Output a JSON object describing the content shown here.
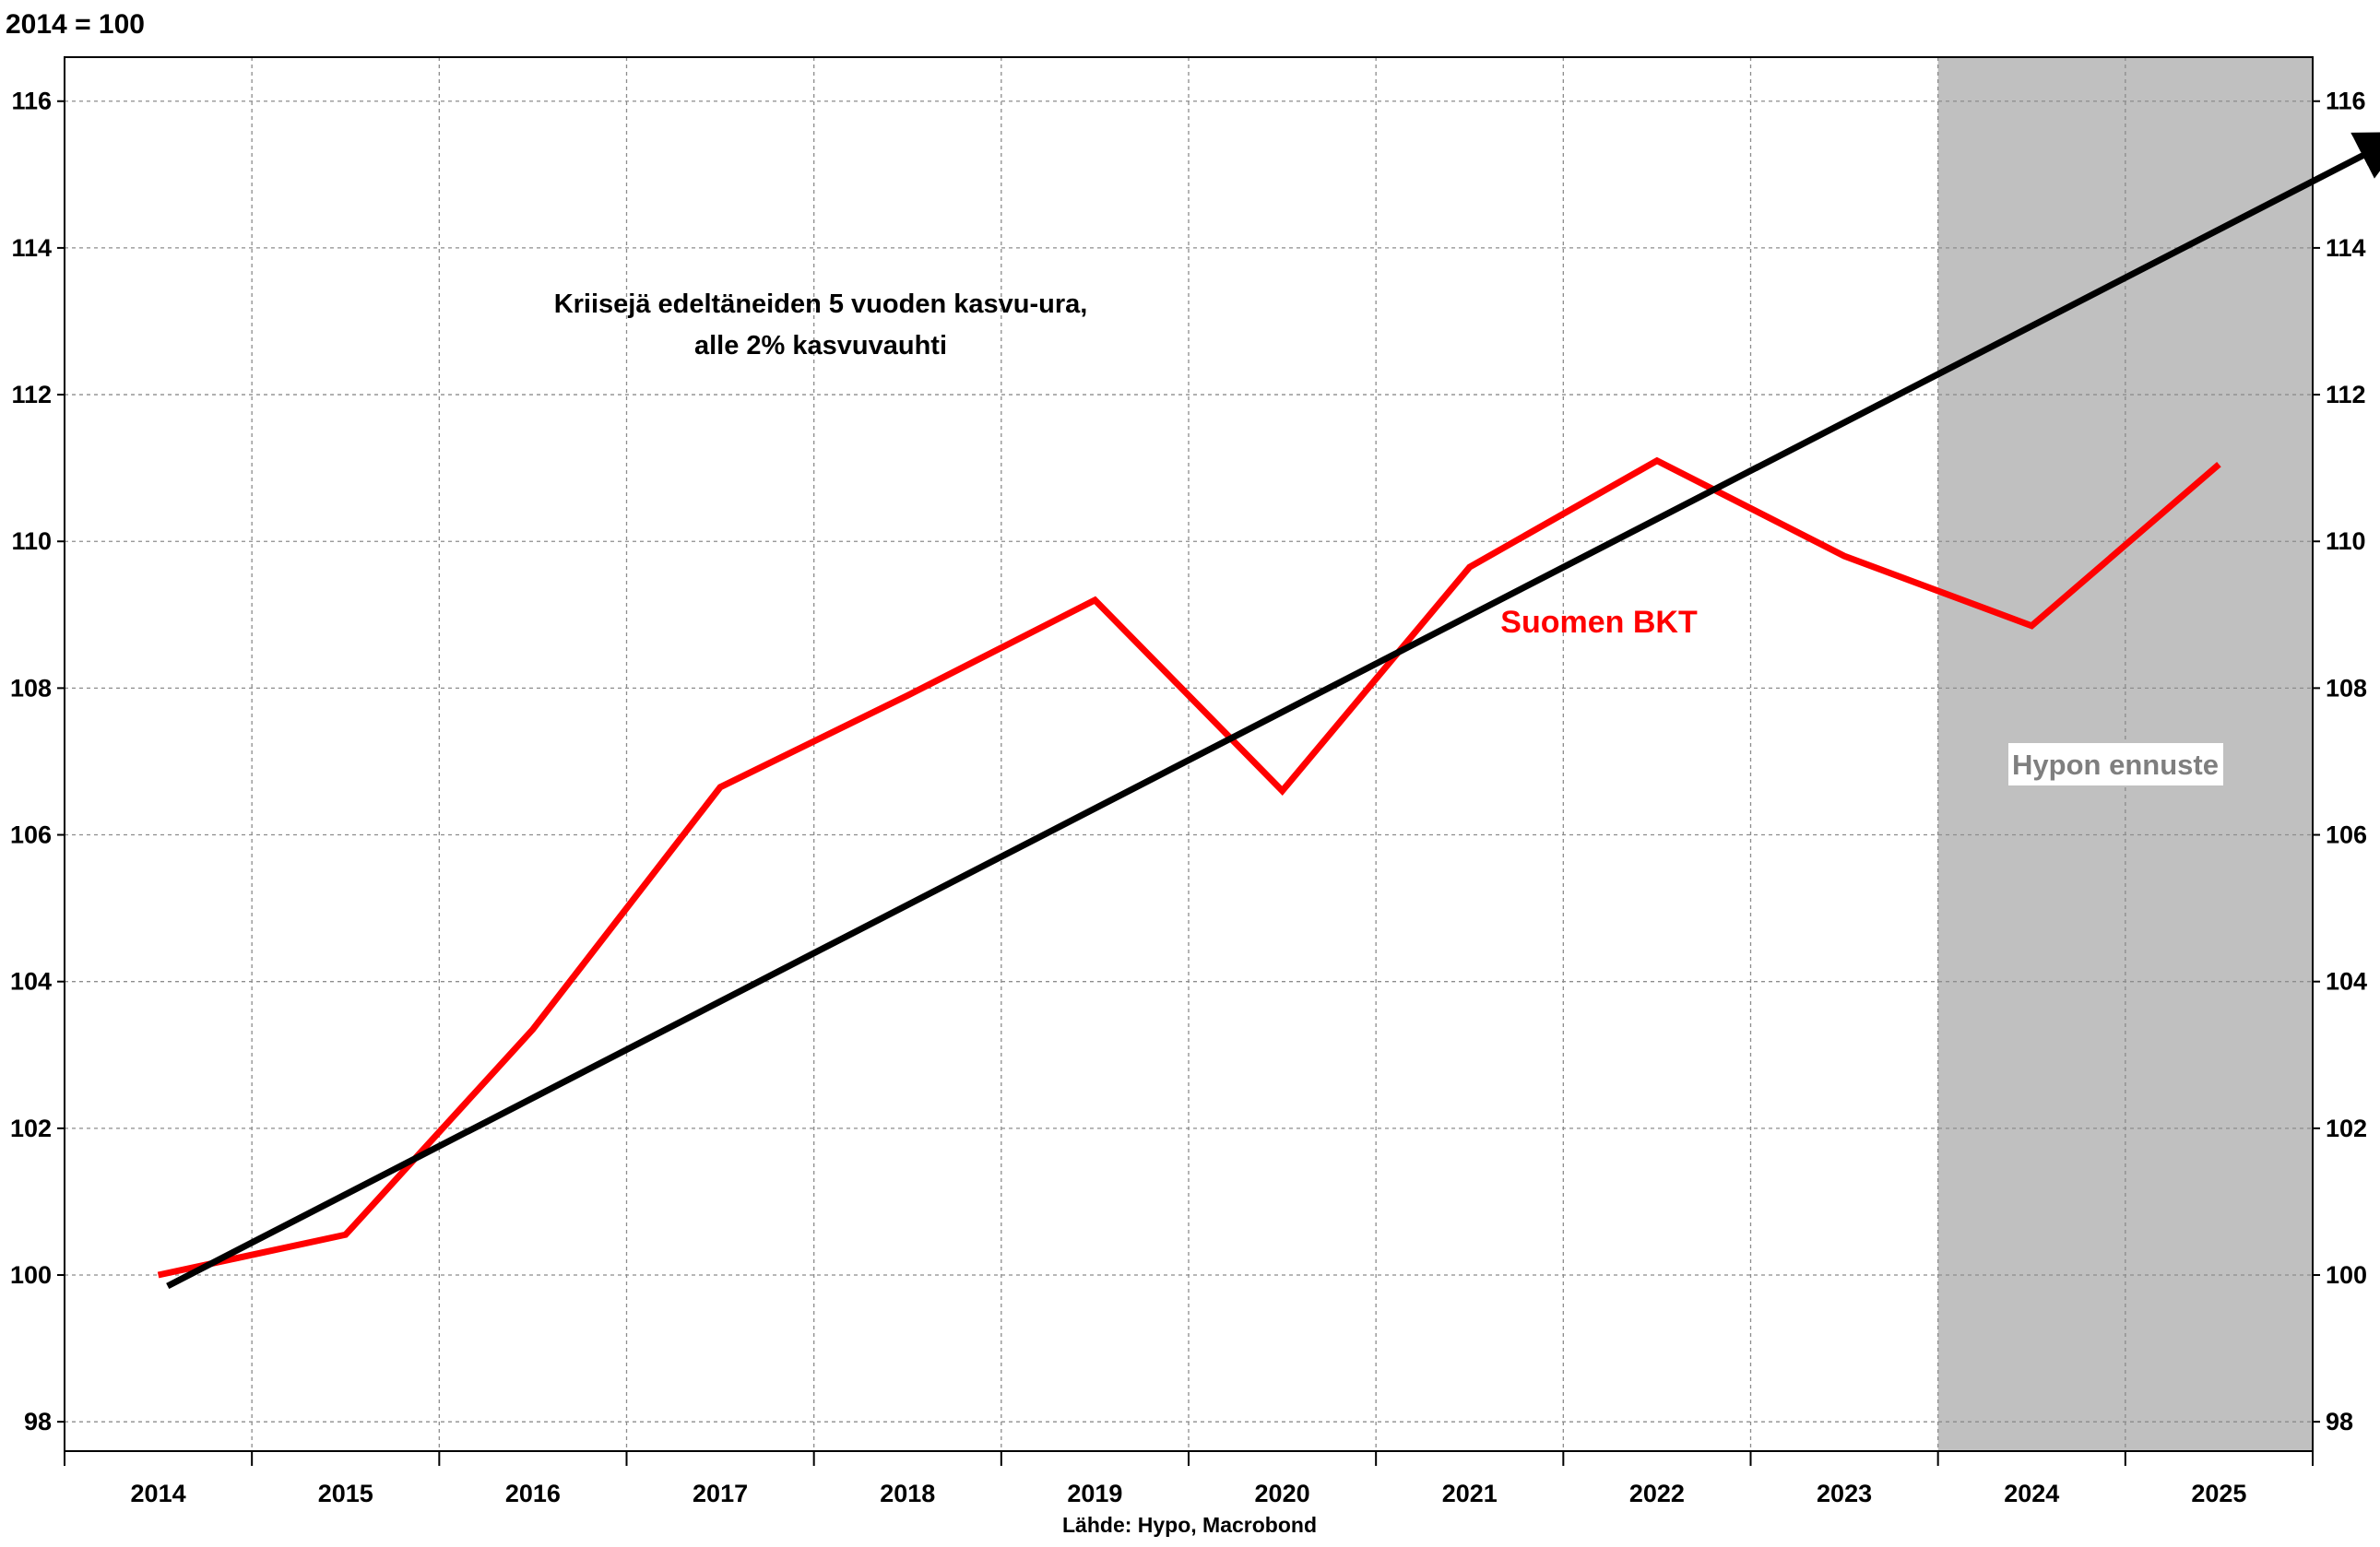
{
  "chart_data": {
    "type": "line",
    "unit_label": "2014 = 100",
    "x_ticks": [
      "2014",
      "2015",
      "2016",
      "2017",
      "2018",
      "2019",
      "2020",
      "2021",
      "2022",
      "2023",
      "2024",
      "2025"
    ],
    "y_ticks": [
      "98",
      "100",
      "102",
      "104",
      "106",
      "108",
      "110",
      "112",
      "114",
      "116"
    ],
    "ylim": [
      97.6,
      116.6
    ],
    "y_axis_sides": "left-and-right",
    "grid": true,
    "forecast_region": {
      "x_start": 2023.5,
      "x_end": 2025.5,
      "label": "Hypon ennuste",
      "color": "#c0c0c0"
    },
    "series": [
      {
        "name": "Suomen BKT",
        "color": "#ff0000",
        "x": [
          2014,
          2015,
          2016,
          2017,
          2018,
          2019,
          2020,
          2021,
          2022,
          2023,
          2024,
          2025
        ],
        "values": [
          100.0,
          100.55,
          103.35,
          106.65,
          107.9,
          109.2,
          106.6,
          109.65,
          111.1,
          109.8,
          108.85,
          111.05
        ]
      },
      {
        "name": "",
        "color": "#000000",
        "type": "arrow",
        "x": [
          2014.05,
          2025.95
        ],
        "values": [
          99.85,
          115.5
        ]
      }
    ],
    "annotation_lines": [
      "Kriisejä edeltäneiden 5 vuoden kasvu-ura,",
      "alle 2% kasvuvauhti"
    ],
    "source": "Lähde: Hypo, Macrobond"
  }
}
